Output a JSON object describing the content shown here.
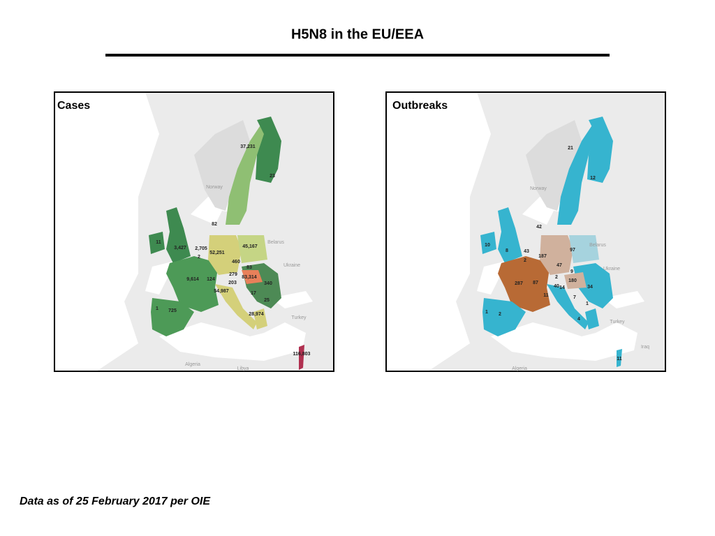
{
  "title": "H5N8 in the EU/EEA",
  "maps": [
    {
      "title": "Cases",
      "value_labels": [
        "37,231",
        "23",
        "82",
        "11",
        "3,427",
        "2,705",
        "2",
        "52,251",
        "45,167",
        "460",
        "83",
        "279",
        "83,314",
        "9,614",
        "124",
        "203",
        "340",
        "54,987",
        "17",
        "25",
        "1",
        "725",
        "28,974",
        "116,803"
      ],
      "place_labels": [
        "Norway",
        "Belarus",
        "Ukraine",
        "Turkey",
        "Algeria",
        "Libya"
      ]
    },
    {
      "title": "Outbreaks",
      "value_labels": [
        "21",
        "12",
        "42",
        "10",
        "8",
        "43",
        "97",
        "2",
        "187",
        "47",
        "9",
        "180",
        "287",
        "87",
        "2",
        "40",
        "14",
        "34",
        "11",
        "7",
        "1",
        "1",
        "2",
        "4",
        "11"
      ],
      "place_labels": [
        "Norway",
        "Belarus",
        "Ukraine",
        "Turkey",
        "Iraq",
        "Algeria"
      ]
    }
  ],
  "footnote": "Data as of 25 February 2017 per OIE"
}
